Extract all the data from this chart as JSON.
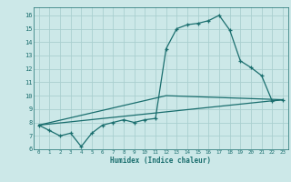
{
  "title": "",
  "xlabel": "Humidex (Indice chaleur)",
  "background_color": "#cce8e8",
  "grid_color": "#aacfcf",
  "line_color": "#1a6e6e",
  "xlim": [
    -0.5,
    23.5
  ],
  "ylim": [
    6,
    16.6
  ],
  "xticks": [
    0,
    1,
    2,
    3,
    4,
    5,
    6,
    7,
    8,
    9,
    10,
    11,
    12,
    13,
    14,
    15,
    16,
    17,
    18,
    19,
    20,
    21,
    22,
    23
  ],
  "yticks": [
    6,
    7,
    8,
    9,
    10,
    11,
    12,
    13,
    14,
    15,
    16
  ],
  "line1_x": [
    0,
    1,
    2,
    3,
    4,
    5,
    6,
    7,
    8,
    9,
    10,
    11,
    12,
    13,
    14,
    15,
    16,
    17,
    18,
    19,
    20,
    21,
    22,
    23
  ],
  "line1_y": [
    7.8,
    7.4,
    7.0,
    7.2,
    6.2,
    7.2,
    7.8,
    8.0,
    8.2,
    8.0,
    8.2,
    8.3,
    13.5,
    15.0,
    15.3,
    15.4,
    15.6,
    16.0,
    14.9,
    12.6,
    12.1,
    11.5,
    9.6,
    9.7
  ],
  "line2_x": [
    0,
    23
  ],
  "line2_y": [
    7.8,
    9.7
  ],
  "line3_x": [
    0,
    12,
    23
  ],
  "line3_y": [
    7.8,
    10.0,
    9.7
  ]
}
